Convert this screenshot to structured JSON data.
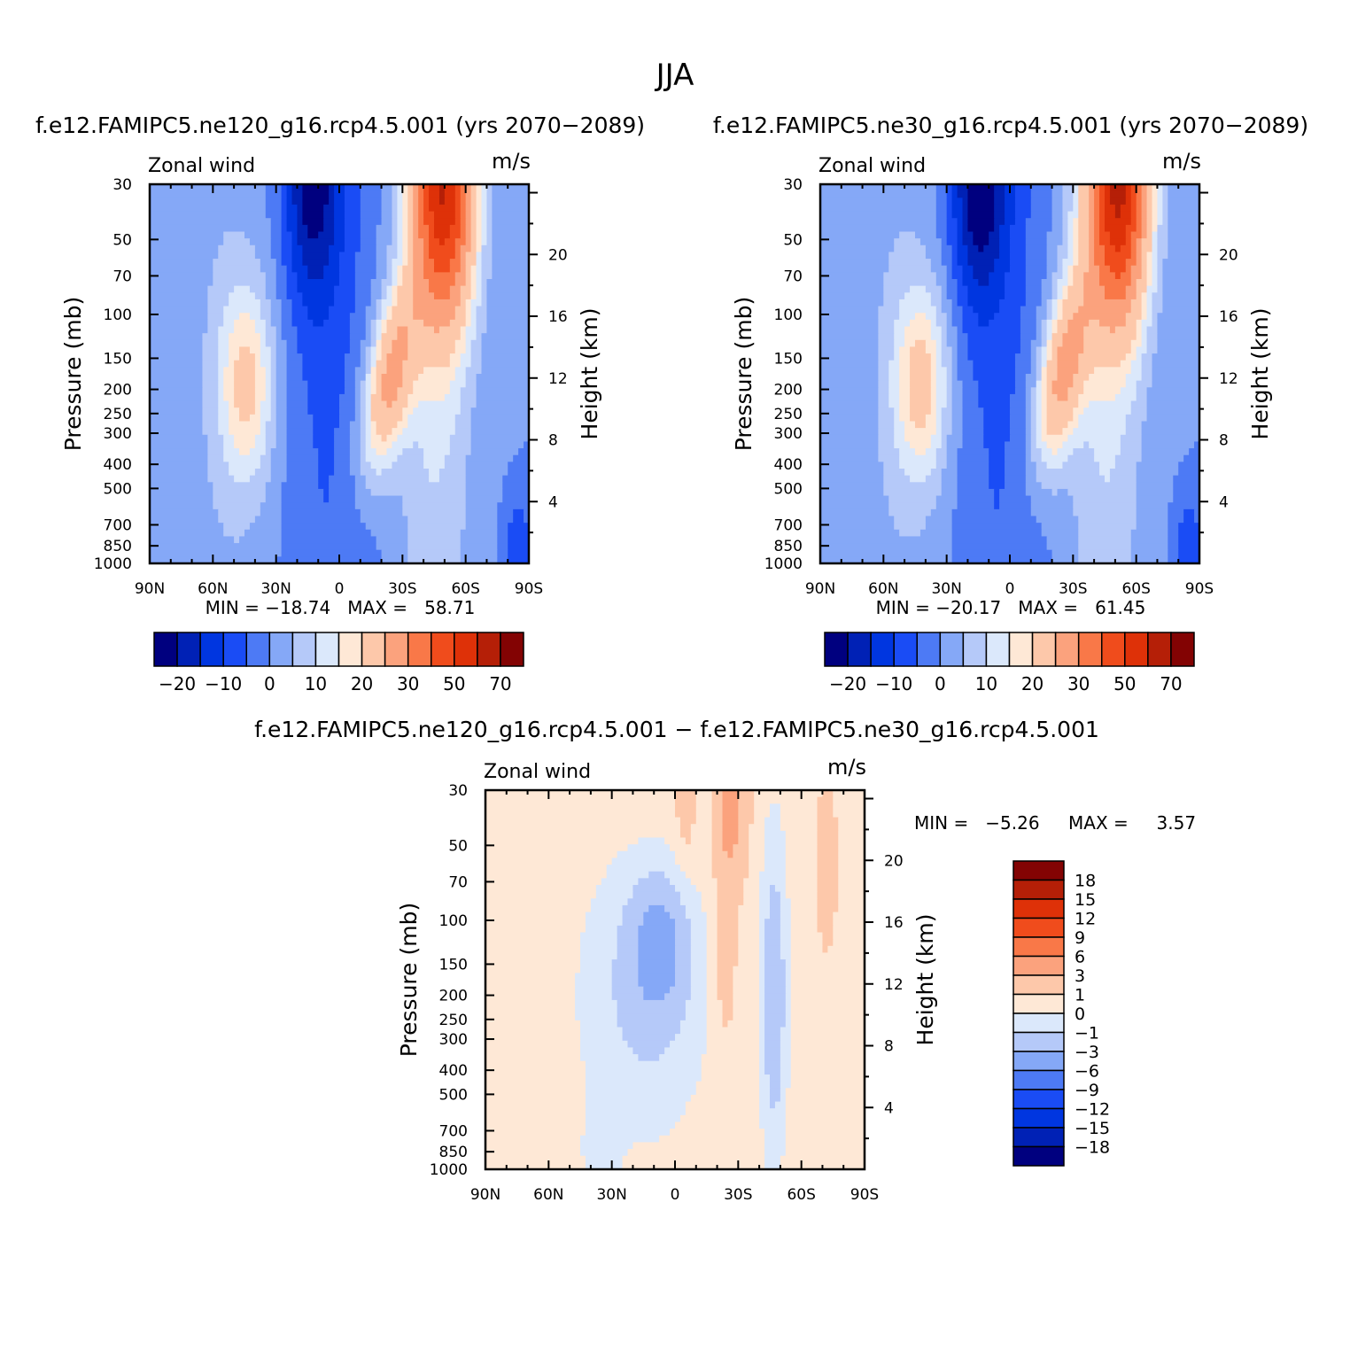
{
  "title": "JJA",
  "chart_data": [
    {
      "type": "contour",
      "title": "f.e12.FAMIPC5.ne120_g16.rcp4.5.001 (yrs 2070−2089)",
      "left_label": "Zonal wind",
      "right_label": "m/s",
      "ylabel": "Pressure (mb)",
      "y2label": "Height (km)",
      "x_ticks": [
        "90N",
        "60N",
        "30N",
        "0",
        "30S",
        "60S",
        "90S"
      ],
      "x_values": [
        90,
        60,
        30,
        0,
        -30,
        -60,
        -90
      ],
      "y_ticks": [
        "30",
        "50",
        "70",
        "100",
        "150",
        "200",
        "250",
        "300",
        "400",
        "500",
        "700",
        "850",
        "1000"
      ],
      "y_values": [
        30,
        50,
        70,
        100,
        150,
        200,
        250,
        300,
        400,
        500,
        700,
        850,
        1000
      ],
      "y2_ticks": [
        "20",
        "16",
        "12",
        "8",
        "4"
      ],
      "y2_values": [
        20,
        16,
        12,
        8,
        4
      ],
      "ylim": [
        1000,
        30
      ],
      "stats": "MIN = −18.74   MAX =   58.71",
      "min": -18.74,
      "max": 58.71,
      "levels": [
        -25,
        -20,
        -15,
        -10,
        -5,
        0,
        5,
        10,
        15,
        20,
        30,
        40,
        50,
        60,
        70,
        80
      ],
      "colorbar_labels": [
        "−20",
        "−10",
        "0",
        "10",
        "20",
        "30",
        "50",
        "70"
      ],
      "jet": {
        "lat": -50,
        "p": 30,
        "value": 58
      },
      "subjet": {
        "lat": -24,
        "p": 180,
        "value": 42
      },
      "easterly": {
        "lat": 13,
        "p": 30,
        "value": -18
      },
      "nh_jet": {
        "lat": 44,
        "p": 190,
        "value": 20
      }
    },
    {
      "type": "contour",
      "title": "f.e12.FAMIPC5.ne30_g16.rcp4.5.001 (yrs 2070−2089)",
      "left_label": "Zonal wind",
      "right_label": "m/s",
      "ylabel": "Pressure (mb)",
      "y2label": "Height (km)",
      "x_ticks": [
        "90N",
        "60N",
        "30N",
        "0",
        "30S",
        "60S",
        "90S"
      ],
      "x_values": [
        90,
        60,
        30,
        0,
        -30,
        -60,
        -90
      ],
      "y_ticks": [
        "30",
        "50",
        "70",
        "100",
        "150",
        "200",
        "250",
        "300",
        "400",
        "500",
        "700",
        "850",
        "1000"
      ],
      "y_values": [
        30,
        50,
        70,
        100,
        150,
        200,
        250,
        300,
        400,
        500,
        700,
        850,
        1000
      ],
      "y2_ticks": [
        "20",
        "16",
        "12",
        "8",
        "4"
      ],
      "y2_values": [
        20,
        16,
        12,
        8,
        4
      ],
      "ylim": [
        1000,
        30
      ],
      "stats": "MIN = −20.17   MAX =   61.45",
      "min": -20.17,
      "max": 61.45,
      "levels": [
        -25,
        -20,
        -15,
        -10,
        -5,
        0,
        5,
        10,
        15,
        20,
        30,
        40,
        50,
        60,
        70,
        80
      ],
      "colorbar_labels": [
        "−20",
        "−10",
        "0",
        "10",
        "20",
        "30",
        "50",
        "70"
      ],
      "jet": {
        "lat": -52,
        "p": 30,
        "value": 61
      },
      "subjet": {
        "lat": -25,
        "p": 170,
        "value": 43
      },
      "easterly": {
        "lat": 15,
        "p": 30,
        "value": -20
      },
      "nh_jet": {
        "lat": 42,
        "p": 190,
        "value": 21
      }
    },
    {
      "type": "contour",
      "title": "f.e12.FAMIPC5.ne120_g16.rcp4.5.001 − f.e12.FAMIPC5.ne30_g16.rcp4.5.001",
      "left_label": "Zonal wind",
      "right_label": "m/s",
      "ylabel": "Pressure (mb)",
      "y2label": "Height (km)",
      "x_ticks": [
        "90N",
        "60N",
        "30N",
        "0",
        "30S",
        "60S",
        "90S"
      ],
      "x_values": [
        90,
        60,
        30,
        0,
        -30,
        -60,
        -90
      ],
      "y_ticks": [
        "30",
        "50",
        "70",
        "100",
        "150",
        "200",
        "250",
        "300",
        "400",
        "500",
        "700",
        "850",
        "1000"
      ],
      "y_values": [
        30,
        50,
        70,
        100,
        150,
        200,
        250,
        300,
        400,
        500,
        700,
        850,
        1000
      ],
      "y2_ticks": [
        "20",
        "16",
        "12",
        "8",
        "4"
      ],
      "y2_values": [
        20,
        16,
        12,
        8,
        4
      ],
      "ylim": [
        1000,
        30
      ],
      "stats_min": "MIN =   −5.26",
      "stats_max": "MAX =     3.57",
      "min": -5.26,
      "max": 3.57,
      "levels": [
        -21,
        -18,
        -15,
        -12,
        -9,
        -6,
        -3,
        -1,
        0,
        1,
        3,
        6,
        9,
        12,
        15,
        18,
        21
      ],
      "colorbar_labels": [
        "18",
        "15",
        "12",
        "9",
        "6",
        "3",
        "1",
        "0",
        "−1",
        "−3",
        "−6",
        "−9",
        "−12",
        "−15",
        "−18"
      ]
    }
  ]
}
